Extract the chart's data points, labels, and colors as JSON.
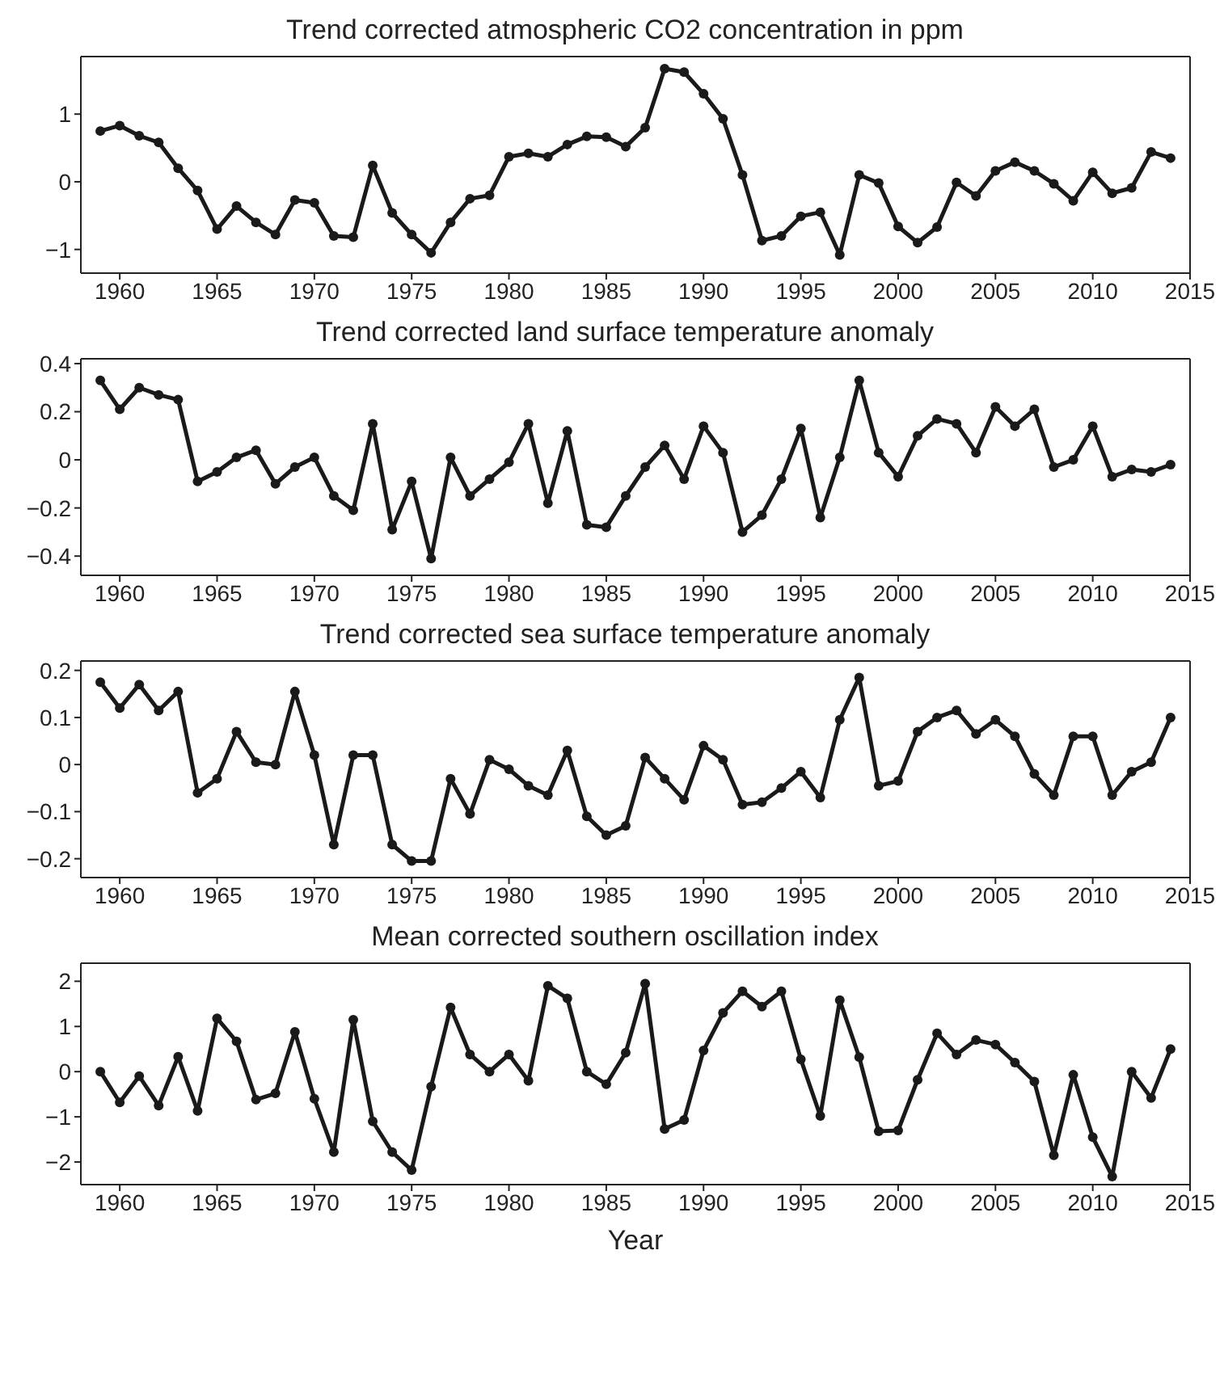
{
  "chart_data": [
    {
      "type": "line",
      "title": "Trend corrected atmospheric CO2 concentration in ppm",
      "x": [
        1959,
        1960,
        1961,
        1962,
        1963,
        1964,
        1965,
        1966,
        1967,
        1968,
        1969,
        1970,
        1971,
        1972,
        1973,
        1974,
        1975,
        1976,
        1977,
        1978,
        1979,
        1980,
        1981,
        1982,
        1983,
        1984,
        1985,
        1986,
        1987,
        1988,
        1989,
        1990,
        1991,
        1992,
        1993,
        1994,
        1995,
        1996,
        1997,
        1998,
        1999,
        2000,
        2001,
        2002,
        2003,
        2004,
        2005,
        2006,
        2007,
        2008,
        2009,
        2010,
        2011,
        2012,
        2013,
        2014
      ],
      "series": [
        {
          "color": "#1a1a1a",
          "values": [
            0.75,
            0.83,
            0.68,
            0.58,
            0.2,
            -0.13,
            -0.7,
            -0.36,
            -0.6,
            -0.78,
            -0.27,
            -0.31,
            -0.8,
            -0.82,
            0.24,
            -0.46,
            -0.78,
            -1.05,
            -0.6,
            -0.25,
            -0.2,
            0.37,
            0.42,
            0.37,
            0.55,
            0.67,
            0.66,
            0.52,
            0.8,
            1.67,
            1.62,
            1.3,
            0.93,
            0.1,
            -0.87,
            -0.8,
            -0.51,
            -0.45,
            -1.08,
            0.1,
            -0.02,
            -0.66,
            -0.9,
            -0.67,
            -0.01,
            -0.21,
            0.16,
            0.29,
            0.16,
            -0.03,
            -0.28,
            0.14,
            -0.17,
            -0.09,
            0.44,
            0.35
          ]
        }
      ],
      "xlim": [
        1958,
        2015
      ],
      "xticks": [
        1960,
        1965,
        1970,
        1975,
        1980,
        1985,
        1990,
        1995,
        2000,
        2005,
        2010,
        2015
      ],
      "ylim": [
        -1.35,
        1.85
      ],
      "yticks": [
        -1,
        0,
        1
      ],
      "marker": "circle",
      "line_style": "solid"
    },
    {
      "type": "line",
      "title": "Trend corrected land surface temperature anomaly",
      "x": [
        1959,
        1960,
        1961,
        1962,
        1963,
        1964,
        1965,
        1966,
        1967,
        1968,
        1969,
        1970,
        1971,
        1972,
        1973,
        1974,
        1975,
        1976,
        1977,
        1978,
        1979,
        1980,
        1981,
        1982,
        1983,
        1984,
        1985,
        1986,
        1987,
        1988,
        1989,
        1990,
        1991,
        1992,
        1993,
        1994,
        1995,
        1996,
        1997,
        1998,
        1999,
        2000,
        2001,
        2002,
        2003,
        2004,
        2005,
        2006,
        2007,
        2008,
        2009,
        2010,
        2011,
        2012,
        2013,
        2014
      ],
      "series": [
        {
          "color": "#1a1a1a",
          "values": [
            0.33,
            0.21,
            0.3,
            0.27,
            0.25,
            -0.09,
            -0.05,
            0.01,
            0.04,
            -0.1,
            -0.03,
            0.01,
            -0.15,
            -0.21,
            0.15,
            -0.29,
            -0.09,
            -0.41,
            0.01,
            -0.15,
            -0.08,
            -0.01,
            0.15,
            -0.18,
            0.12,
            -0.27,
            -0.28,
            -0.15,
            -0.03,
            0.06,
            -0.08,
            0.14,
            0.03,
            -0.3,
            -0.23,
            -0.08,
            0.13,
            -0.24,
            0.01,
            0.33,
            0.03,
            -0.07,
            0.1,
            0.17,
            0.15,
            0.03,
            0.22,
            0.14,
            0.21,
            -0.03,
            0,
            0.14,
            -0.07,
            -0.04,
            -0.05,
            -0.02
          ]
        }
      ],
      "xlim": [
        1958,
        2015
      ],
      "xticks": [
        1960,
        1965,
        1970,
        1975,
        1980,
        1985,
        1990,
        1995,
        2000,
        2005,
        2010,
        2015
      ],
      "ylim": [
        -0.48,
        0.42
      ],
      "yticks": [
        -0.4,
        -0.2,
        0,
        0.2,
        0.4
      ],
      "marker": "circle",
      "line_style": "solid"
    },
    {
      "type": "line",
      "title": "Trend corrected sea surface temperature anomaly",
      "x": [
        1959,
        1960,
        1961,
        1962,
        1963,
        1964,
        1965,
        1966,
        1967,
        1968,
        1969,
        1970,
        1971,
        1972,
        1973,
        1974,
        1975,
        1976,
        1977,
        1978,
        1979,
        1980,
        1981,
        1982,
        1983,
        1984,
        1985,
        1986,
        1987,
        1988,
        1989,
        1990,
        1991,
        1992,
        1993,
        1994,
        1995,
        1996,
        1997,
        1998,
        1999,
        2000,
        2001,
        2002,
        2003,
        2004,
        2005,
        2006,
        2007,
        2008,
        2009,
        2010,
        2011,
        2012,
        2013,
        2014
      ],
      "series": [
        {
          "color": "#1a1a1a",
          "values": [
            0.175,
            0.12,
            0.17,
            0.115,
            0.155,
            -0.06,
            -0.03,
            0.07,
            0.005,
            0,
            0.155,
            0.02,
            -0.17,
            0.02,
            0.02,
            -0.17,
            -0.205,
            -0.205,
            -0.03,
            -0.105,
            0.01,
            -0.01,
            -0.045,
            -0.065,
            0.03,
            -0.11,
            -0.15,
            -0.13,
            0.015,
            -0.03,
            -0.075,
            0.04,
            0.01,
            -0.085,
            -0.08,
            -0.05,
            -0.015,
            -0.07,
            0.095,
            0.185,
            -0.045,
            -0.035,
            0.07,
            0.1,
            0.115,
            0.065,
            0.095,
            0.06,
            -0.02,
            -0.065,
            0.06,
            0.06,
            -0.065,
            -0.015,
            0.005,
            0.1
          ]
        }
      ],
      "xlim": [
        1958,
        2015
      ],
      "xticks": [
        1960,
        1965,
        1970,
        1975,
        1980,
        1985,
        1990,
        1995,
        2000,
        2005,
        2010,
        2015
      ],
      "ylim": [
        -0.24,
        0.22
      ],
      "yticks": [
        -0.2,
        -0.1,
        0,
        0.1,
        0.2
      ],
      "marker": "circle",
      "line_style": "solid"
    },
    {
      "type": "line",
      "title": "Mean corrected southern oscillation index",
      "xlabel": "Year",
      "x": [
        1959,
        1960,
        1961,
        1962,
        1963,
        1964,
        1965,
        1966,
        1967,
        1968,
        1969,
        1970,
        1971,
        1972,
        1973,
        1974,
        1975,
        1976,
        1977,
        1978,
        1979,
        1980,
        1981,
        1982,
        1983,
        1984,
        1985,
        1986,
        1987,
        1988,
        1989,
        1990,
        1991,
        1992,
        1993,
        1994,
        1995,
        1996,
        1997,
        1998,
        1999,
        2000,
        2001,
        2002,
        2003,
        2004,
        2005,
        2006,
        2007,
        2008,
        2009,
        2010,
        2011,
        2012,
        2013,
        2014
      ],
      "series": [
        {
          "color": "#1a1a1a",
          "values": [
            0,
            -0.68,
            -0.1,
            -0.75,
            0.33,
            -0.87,
            1.18,
            0.67,
            -0.62,
            -0.48,
            0.88,
            -0.6,
            -1.78,
            1.15,
            -1.1,
            -1.78,
            -2.18,
            -0.33,
            1.42,
            0.38,
            0,
            0.38,
            -0.2,
            1.9,
            1.62,
            0,
            -0.28,
            0.42,
            1.95,
            -1.27,
            -1.07,
            0.47,
            1.3,
            1.78,
            1.44,
            1.78,
            0.27,
            -0.98,
            1.58,
            0.32,
            -1.32,
            -1.3,
            -0.18,
            0.85,
            0.38,
            0.7,
            0.6,
            0.2,
            -0.22,
            -1.85,
            -0.07,
            -1.45,
            -2.32,
            0,
            -0.58,
            0.5
          ]
        }
      ],
      "xlim": [
        1958,
        2015
      ],
      "xticks": [
        1960,
        1965,
        1970,
        1975,
        1980,
        1985,
        1990,
        1995,
        2000,
        2005,
        2010,
        2015
      ],
      "ylim": [
        -2.5,
        2.4
      ],
      "yticks": [
        -2,
        -1,
        0,
        1,
        2
      ],
      "marker": "circle",
      "line_style": "solid"
    }
  ]
}
